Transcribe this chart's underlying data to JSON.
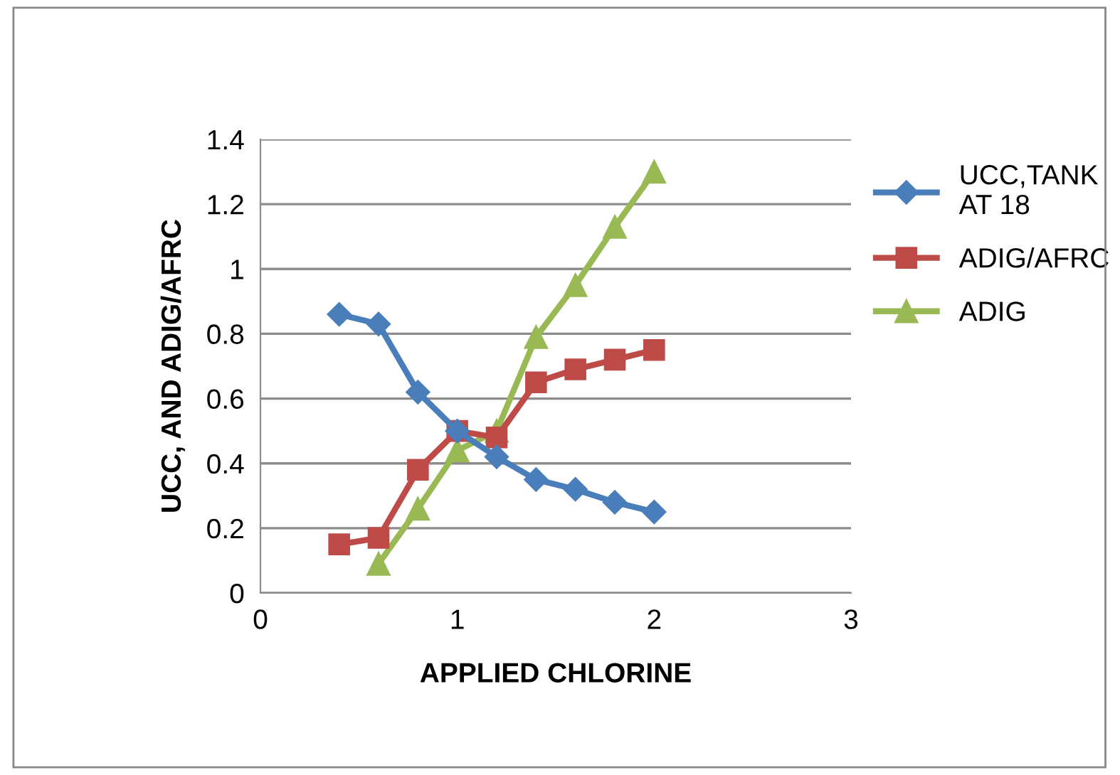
{
  "chart_data": {
    "type": "line",
    "xlabel": "APPLIED CHLORINE",
    "ylabel": "UCC, AND ADIG/AFRC",
    "xlim": [
      0,
      3
    ],
    "xticks": [
      0,
      1,
      2,
      3
    ],
    "ylim": [
      0,
      1.4
    ],
    "yticks": [
      0,
      0.2,
      0.4,
      0.6,
      0.8,
      1,
      1.2,
      1.4
    ],
    "grid": "y",
    "legend": "right",
    "series": [
      {
        "name": "UCC,TANK\nAT 18",
        "color": "#4a7ebb",
        "marker": "diamond",
        "x": [
          0.4,
          0.6,
          0.8,
          1.0,
          1.2,
          1.4,
          1.6,
          1.8,
          2.0
        ],
        "values": [
          0.86,
          0.83,
          0.62,
          0.5,
          0.42,
          0.35,
          0.32,
          0.28,
          0.25
        ]
      },
      {
        "name": "ADIG/AFRC",
        "color": "#be4b48",
        "marker": "square",
        "x": [
          0.4,
          0.6,
          0.8,
          1.0,
          1.2,
          1.4,
          1.6,
          1.8,
          2.0
        ],
        "values": [
          0.15,
          0.17,
          0.38,
          0.5,
          0.48,
          0.65,
          0.69,
          0.72,
          0.75
        ]
      },
      {
        "name": "ADIG",
        "color": "#98b954",
        "marker": "triangle",
        "x": [
          0.6,
          0.8,
          1.0,
          1.2,
          1.4,
          1.6,
          1.8,
          2.0
        ],
        "values": [
          0.09,
          0.26,
          0.44,
          0.5,
          0.79,
          0.95,
          1.13,
          1.3
        ]
      }
    ]
  }
}
